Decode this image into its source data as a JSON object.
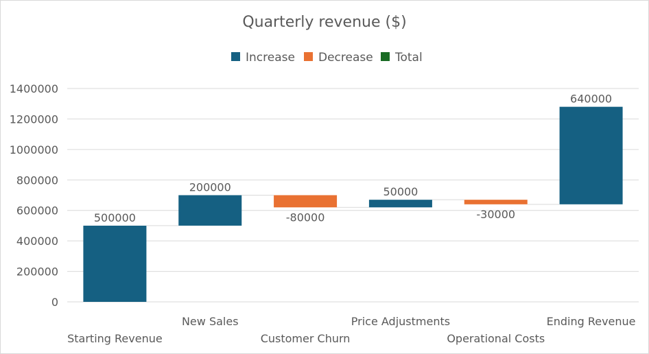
{
  "chart_data": {
    "type": "waterfall",
    "title": "Quarterly revenue ($)",
    "legend": {
      "position": "top",
      "entries": [
        {
          "name": "Increase",
          "color": "#156082"
        },
        {
          "name": "Decrease",
          "color": "#E97132"
        },
        {
          "name": "Total",
          "color": "#196B24"
        }
      ]
    },
    "categories": [
      "Starting Revenue",
      "New Sales",
      "Customer Churn",
      "Price Adjustments",
      "Operational Costs",
      "Ending Revenue"
    ],
    "values": [
      500000,
      200000,
      -80000,
      50000,
      -30000,
      640000
    ],
    "data_labels": [
      "500000",
      "200000",
      "-80000",
      "50000",
      "-30000",
      "640000"
    ],
    "ylim": [
      0,
      1400000
    ],
    "yticks": [
      "0",
      "200000",
      "400000",
      "600000",
      "800000",
      "1000000",
      "1200000",
      "1400000"
    ],
    "grid": true,
    "xlabel": "",
    "ylabel": ""
  }
}
